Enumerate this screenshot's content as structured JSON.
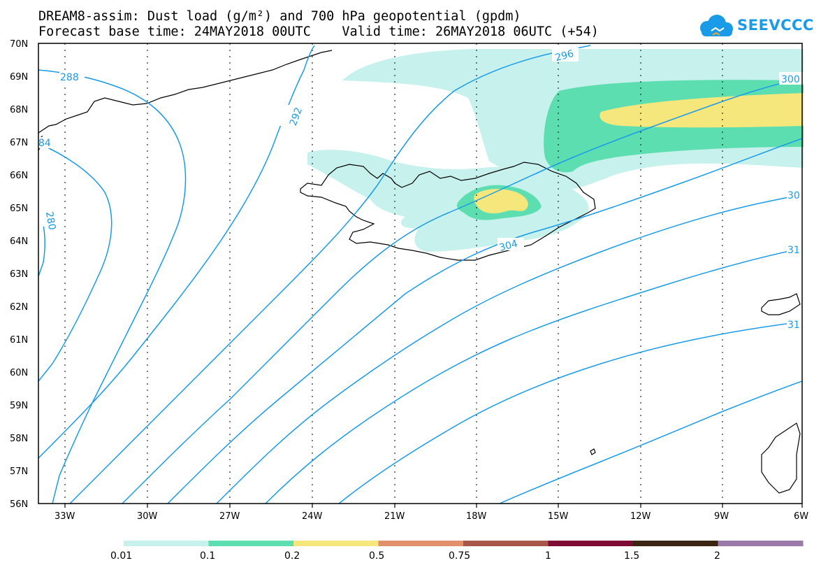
{
  "title": {
    "line1": "DREAM8-assim: Dust load (g/m²) and 700 hPa geopotential (gpdm)",
    "line2": "Forecast base time: 24MAY2018 00UTC    Valid time: 26MAY2018 06UTC (+54)"
  },
  "logo": {
    "text": "SEEVCCC",
    "icon": "cloud-icon"
  },
  "map": {
    "lon_labels": [
      "33W",
      "30W",
      "27W",
      "24W",
      "21W",
      "18W",
      "15W",
      "12W",
      "9W",
      "6W"
    ],
    "lat_labels": [
      "70N",
      "69N",
      "68N",
      "67N",
      "66N",
      "65N",
      "64N",
      "63N",
      "62N",
      "61N",
      "60N",
      "59N",
      "58N",
      "57N",
      "56N"
    ],
    "contour_labels": [
      {
        "text": "288"
      },
      {
        "text": "292"
      },
      {
        "text": "296"
      },
      {
        "text": "300"
      },
      {
        "text": "304"
      },
      {
        "text": "30"
      },
      {
        "text": "31"
      },
      {
        "text": "31"
      },
      {
        "text": "280"
      },
      {
        "text": "84"
      }
    ],
    "contour_color": "#1a9be8"
  },
  "colorbar": {
    "labels": [
      "0.01",
      "0.1",
      "0.2",
      "0.5",
      "0.75",
      "1",
      "1.5",
      "2"
    ],
    "colors": [
      "#c6f1ec",
      "#5ddeb0",
      "#f5e77c",
      "#e2906b",
      "#a8564a",
      "#7d0c34",
      "#3d2513",
      "#9a7aa8"
    ]
  }
}
